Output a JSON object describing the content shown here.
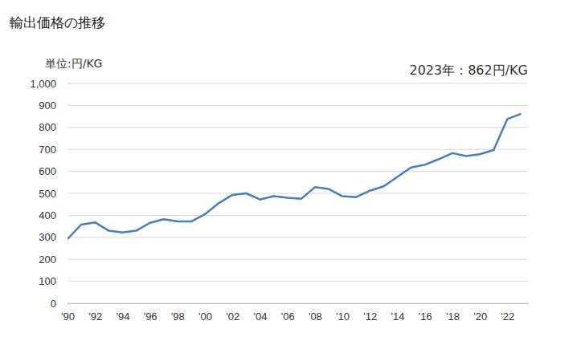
{
  "chart_data": {
    "type": "line",
    "title": "輸出価格の推移",
    "y_label": "単位:円/KG",
    "annotation": "2023年：862円/KG",
    "x": [
      1990,
      1991,
      1992,
      1993,
      1994,
      1995,
      1996,
      1997,
      1998,
      1999,
      2000,
      2001,
      2002,
      2003,
      2004,
      2005,
      2006,
      2007,
      2008,
      2009,
      2010,
      2011,
      2012,
      2013,
      2014,
      2015,
      2016,
      2017,
      2018,
      2019,
      2020,
      2021,
      2022,
      2023
    ],
    "series": [
      {
        "name": "輸出価格",
        "color": "#4a7ebb",
        "values": [
          292,
          358,
          368,
          330,
          322,
          330,
          366,
          382,
          372,
          372,
          405,
          455,
          493,
          500,
          472,
          487,
          480,
          475,
          528,
          520,
          487,
          483,
          512,
          532,
          575,
          618,
          630,
          655,
          683,
          670,
          678,
          697,
          838,
          862
        ]
      }
    ],
    "xlim": [
      1990,
      2023.5
    ],
    "xticks": [
      {
        "value": 1990,
        "label": "'90"
      },
      {
        "value": 1992,
        "label": "'92"
      },
      {
        "value": 1994,
        "label": "'94"
      },
      {
        "value": 1996,
        "label": "'96"
      },
      {
        "value": 1998,
        "label": "'98"
      },
      {
        "value": 2000,
        "label": "'00"
      },
      {
        "value": 2002,
        "label": "'02"
      },
      {
        "value": 2004,
        "label": "'04"
      },
      {
        "value": 2006,
        "label": "'06"
      },
      {
        "value": 2008,
        "label": "'08"
      },
      {
        "value": 2010,
        "label": "'10"
      },
      {
        "value": 2012,
        "label": "'12"
      },
      {
        "value": 2014,
        "label": "'14"
      },
      {
        "value": 2016,
        "label": "'16"
      },
      {
        "value": 2018,
        "label": "'18"
      },
      {
        "value": 2020,
        "label": "'20"
      },
      {
        "value": 2022,
        "label": "'22"
      }
    ],
    "ylim": [
      0,
      1000
    ],
    "yticks": [
      0,
      100,
      200,
      300,
      400,
      500,
      600,
      700,
      800,
      900,
      {
        "value": 1000,
        "label": "1,000"
      }
    ],
    "grid": true
  }
}
